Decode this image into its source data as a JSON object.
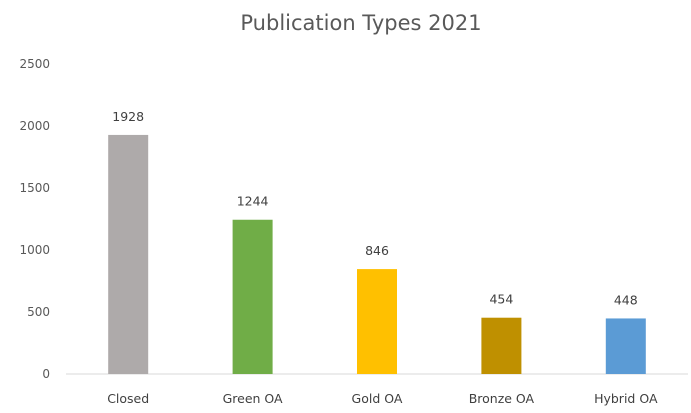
{
  "chart_data": {
    "type": "bar",
    "title": "Publication Types 2021",
    "categories": [
      "Closed",
      "Green OA",
      "Gold OA",
      "Bronze OA",
      "Hybrid OA"
    ],
    "values": [
      1928,
      1244,
      846,
      454,
      448
    ],
    "colors": [
      "#aeaaaa",
      "#70ad47",
      "#ffc000",
      "#bf9000",
      "#5b9bd5"
    ],
    "data_labels": [
      "1928",
      "1244",
      "846",
      "454",
      "448"
    ],
    "ylim": [
      0,
      2500
    ],
    "yticks": [
      0,
      500,
      1000,
      1500,
      2000,
      2500
    ],
    "ytick_labels": [
      "0",
      "500",
      "1000",
      "1500",
      "2000",
      "2500"
    ],
    "xlabel": "",
    "ylabel": "",
    "grid": false,
    "legend": "none"
  }
}
